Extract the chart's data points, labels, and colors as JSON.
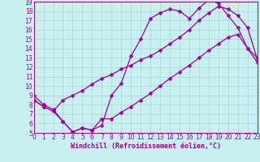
{
  "xlabel": "Windchill (Refroidissement éolien,°C)",
  "bg_color": "#c8f0f0",
  "line_color": "#990099",
  "grid_color": "#aacccc",
  "xlim": [
    0,
    23
  ],
  "ylim": [
    5,
    19
  ],
  "xticks": [
    0,
    1,
    2,
    3,
    4,
    5,
    6,
    7,
    8,
    9,
    10,
    11,
    12,
    13,
    14,
    15,
    16,
    17,
    18,
    19,
    20,
    21,
    22,
    23
  ],
  "yticks": [
    5,
    6,
    7,
    8,
    9,
    10,
    11,
    12,
    13,
    14,
    15,
    16,
    17,
    18,
    19
  ],
  "line1_x": [
    0,
    1,
    2,
    3,
    4,
    5,
    6,
    7,
    8,
    9,
    10,
    11,
    12,
    13,
    14,
    15,
    16,
    17,
    18,
    19,
    20,
    21,
    22,
    23
  ],
  "line1_y": [
    9.0,
    8.0,
    7.5,
    6.2,
    5.1,
    5.5,
    5.3,
    5.8,
    9.0,
    10.3,
    13.2,
    15.0,
    17.2,
    17.8,
    18.2,
    18.0,
    17.2,
    18.3,
    19.2,
    18.8,
    17.5,
    16.2,
    14.0,
    13.0
  ],
  "line2_x": [
    0,
    1,
    2,
    3,
    4,
    5,
    6,
    7,
    8,
    9,
    10,
    11,
    12,
    13,
    14,
    15,
    16,
    17,
    18,
    19,
    20,
    21,
    22,
    23
  ],
  "line2_y": [
    8.5,
    7.8,
    7.3,
    8.5,
    9.0,
    9.5,
    10.2,
    10.8,
    11.2,
    11.8,
    12.2,
    12.8,
    13.2,
    13.8,
    14.5,
    15.2,
    16.0,
    17.0,
    17.8,
    18.5,
    18.2,
    17.5,
    16.2,
    12.8
  ],
  "line3_x": [
    0,
    1,
    2,
    3,
    4,
    5,
    6,
    7,
    8,
    9,
    10,
    11,
    12,
    13,
    14,
    15,
    16,
    17,
    18,
    19,
    20,
    21,
    22,
    23
  ],
  "line3_y": [
    8.5,
    7.8,
    7.3,
    6.2,
    5.1,
    5.5,
    5.3,
    6.5,
    6.5,
    7.2,
    7.8,
    8.5,
    9.2,
    10.0,
    10.8,
    11.5,
    12.2,
    13.0,
    13.8,
    14.5,
    15.2,
    15.5,
    14.0,
    12.5
  ],
  "markersize": 2.5,
  "linewidth": 0.9,
  "tick_fontsize": 5.5,
  "label_fontsize": 6.0
}
